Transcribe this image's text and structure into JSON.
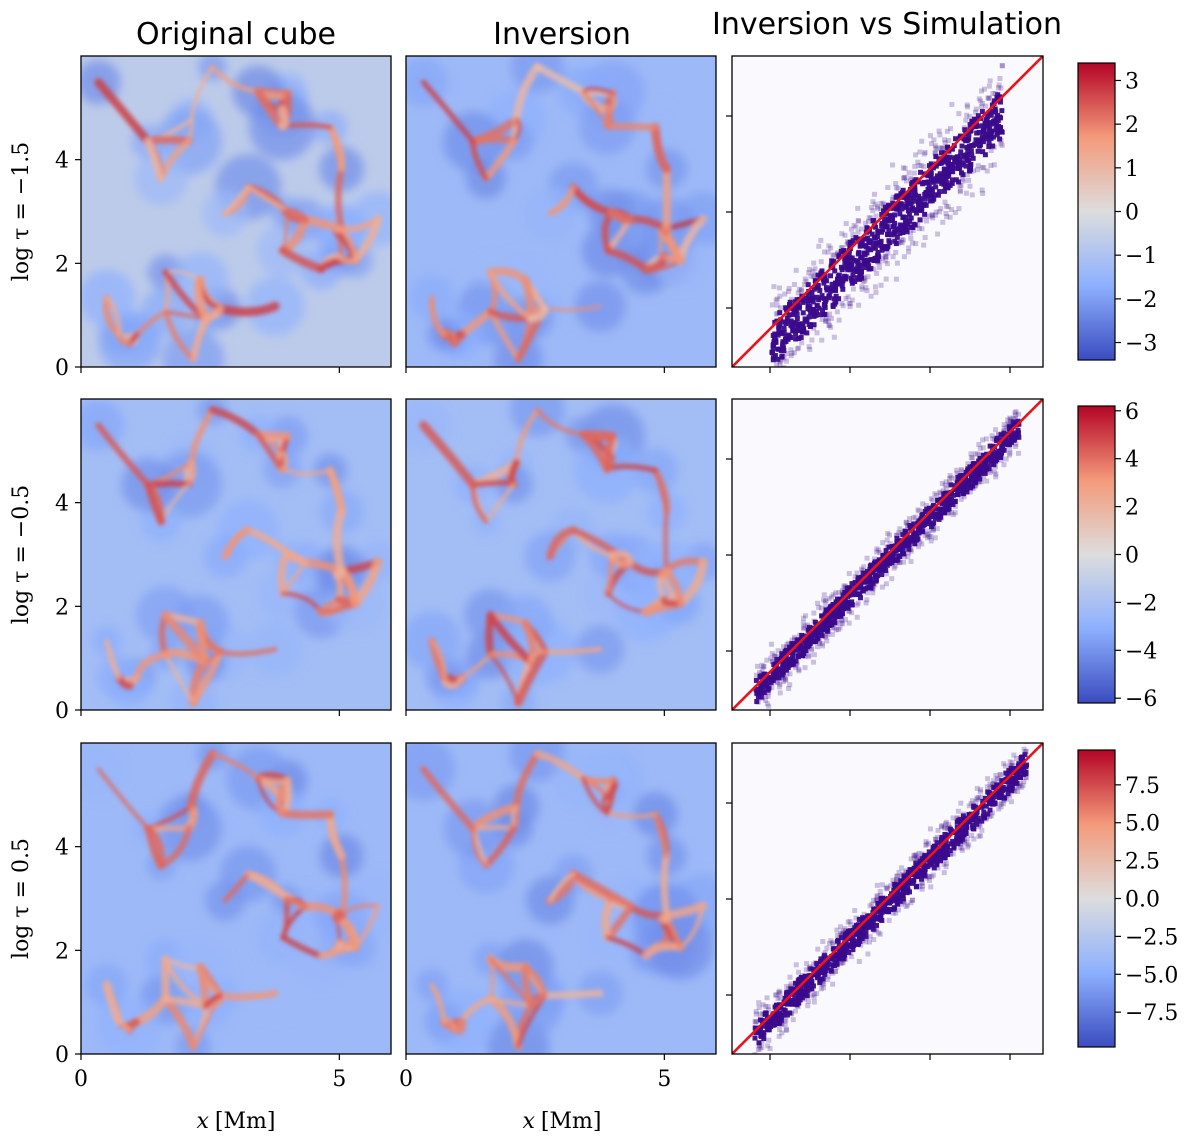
{
  "chart_data": {
    "type": "heatmap",
    "column_titles": [
      "Original cube",
      "Inversion",
      "Inversion vs Simulation"
    ],
    "xlabel": {
      "var": "x",
      "unit": "[Mm]"
    },
    "map_xticks": [
      "0",
      "5"
    ],
    "map_yticks": [
      "0",
      "2",
      "4"
    ],
    "x_range": [
      0,
      6
    ],
    "y_range": [
      0,
      6
    ],
    "colormap": "coolwarm",
    "reference_line_color": "#e8141c",
    "density_color": "#3b0a8c",
    "rows": [
      {
        "label_prefix": "log τ =",
        "label_value": "−1.5",
        "colorbar": {
          "range": [
            -3.4,
            3.4
          ],
          "ticks": [
            "3",
            "2",
            "1",
            "0",
            "−1",
            "−2",
            "−3"
          ]
        },
        "scatter": {
          "inv_range": [
            -2.9,
            2.7
          ],
          "sim_range": [
            -2.9,
            2.9
          ],
          "spread": 0.55
        }
      },
      {
        "label_prefix": "log τ =",
        "label_value": "−0.5",
        "colorbar": {
          "range": [
            -6.2,
            6.2
          ],
          "ticks": [
            "6",
            "4",
            "2",
            "0",
            "−2",
            "−4",
            "−6"
          ]
        },
        "scatter": {
          "inv_range": [
            -5.4,
            5.6
          ],
          "sim_range": [
            -5.4,
            5.6
          ],
          "spread": 0.45
        }
      },
      {
        "label_prefix": "log τ =",
        "label_value": "0.5",
        "colorbar": {
          "range": [
            -9.8,
            9.8
          ],
          "ticks": [
            "7.5",
            "5.0",
            "2.5",
            "0.0",
            "−2.5",
            "−5.0",
            "−7.5"
          ]
        },
        "scatter": {
          "inv_range": [
            -8.8,
            8.4
          ],
          "sim_range": [
            -8.4,
            8.6
          ],
          "spread": 0.7
        }
      }
    ]
  }
}
